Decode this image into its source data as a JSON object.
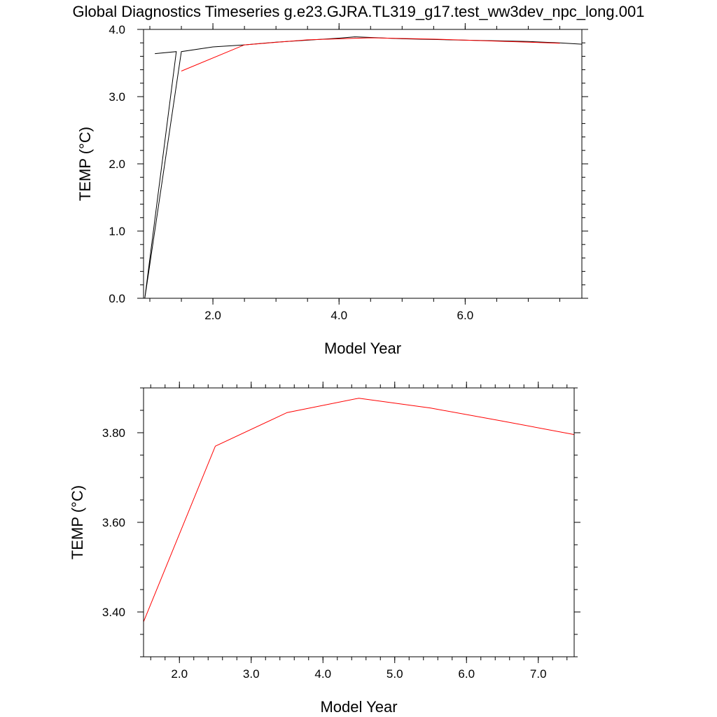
{
  "title": "Global Diagnostics Timeseries g.e23.GJRA.TL319_g17.test_ww3dev_npc_long.001",
  "chart_data": [
    {
      "type": "line",
      "xlabel": "Model Year",
      "ylabel": "TEMP (°C)",
      "xlim": [
        0.9,
        7.85
      ],
      "ylim": [
        0.0,
        4.0
      ],
      "x_ticks": [
        2.0,
        4.0,
        6.0
      ],
      "x_tick_labels": [
        "2.0",
        "4.0",
        "6.0"
      ],
      "x_minor_step": 0.5,
      "y_ticks": [
        0.0,
        1.0,
        2.0,
        3.0,
        4.0
      ],
      "y_tick_labels": [
        "0.0",
        "1.0",
        "2.0",
        "3.0",
        "4.0"
      ],
      "y_minor_step": 0.2,
      "series": [
        {
          "color": "#000000",
          "x": [
            1.08,
            1.42,
            0.92,
            1.5,
            2.0,
            2.5,
            3.0,
            3.5,
            4.0,
            4.25,
            4.5,
            5.0,
            5.5,
            6.0,
            6.5,
            7.0,
            7.5,
            7.85
          ],
          "y": [
            3.64,
            3.67,
            0.0,
            3.67,
            3.74,
            3.77,
            3.81,
            3.84,
            3.87,
            3.89,
            3.88,
            3.86,
            3.85,
            3.84,
            3.83,
            3.82,
            3.8,
            3.78
          ]
        },
        {
          "color": "#ff0000",
          "x": [
            1.5,
            2.5,
            3.5,
            4.5,
            5.5,
            6.5,
            7.5
          ],
          "y": [
            3.38,
            3.77,
            3.845,
            3.875,
            3.855,
            3.825,
            3.795
          ]
        }
      ]
    },
    {
      "type": "line",
      "xlabel": "Model Year",
      "ylabel": "TEMP (°C)",
      "xlim": [
        1.5,
        7.5
      ],
      "ylim": [
        3.3,
        3.9
      ],
      "x_ticks": [
        2.0,
        3.0,
        4.0,
        5.0,
        6.0,
        7.0
      ],
      "x_tick_labels": [
        "2.0",
        "3.0",
        "4.0",
        "5.0",
        "6.0",
        "7.0"
      ],
      "x_minor_step": 0.2,
      "y_ticks": [
        3.4,
        3.6,
        3.8
      ],
      "y_tick_labels": [
        "3.40",
        "3.60",
        "3.80"
      ],
      "y_minor_step": 0.05,
      "series": [
        {
          "color": "#ff0000",
          "x": [
            1.5,
            2.5,
            3.5,
            4.5,
            5.5,
            6.5,
            7.5
          ],
          "y": [
            3.378,
            3.77,
            3.845,
            3.877,
            3.855,
            3.826,
            3.796
          ]
        }
      ]
    }
  ]
}
